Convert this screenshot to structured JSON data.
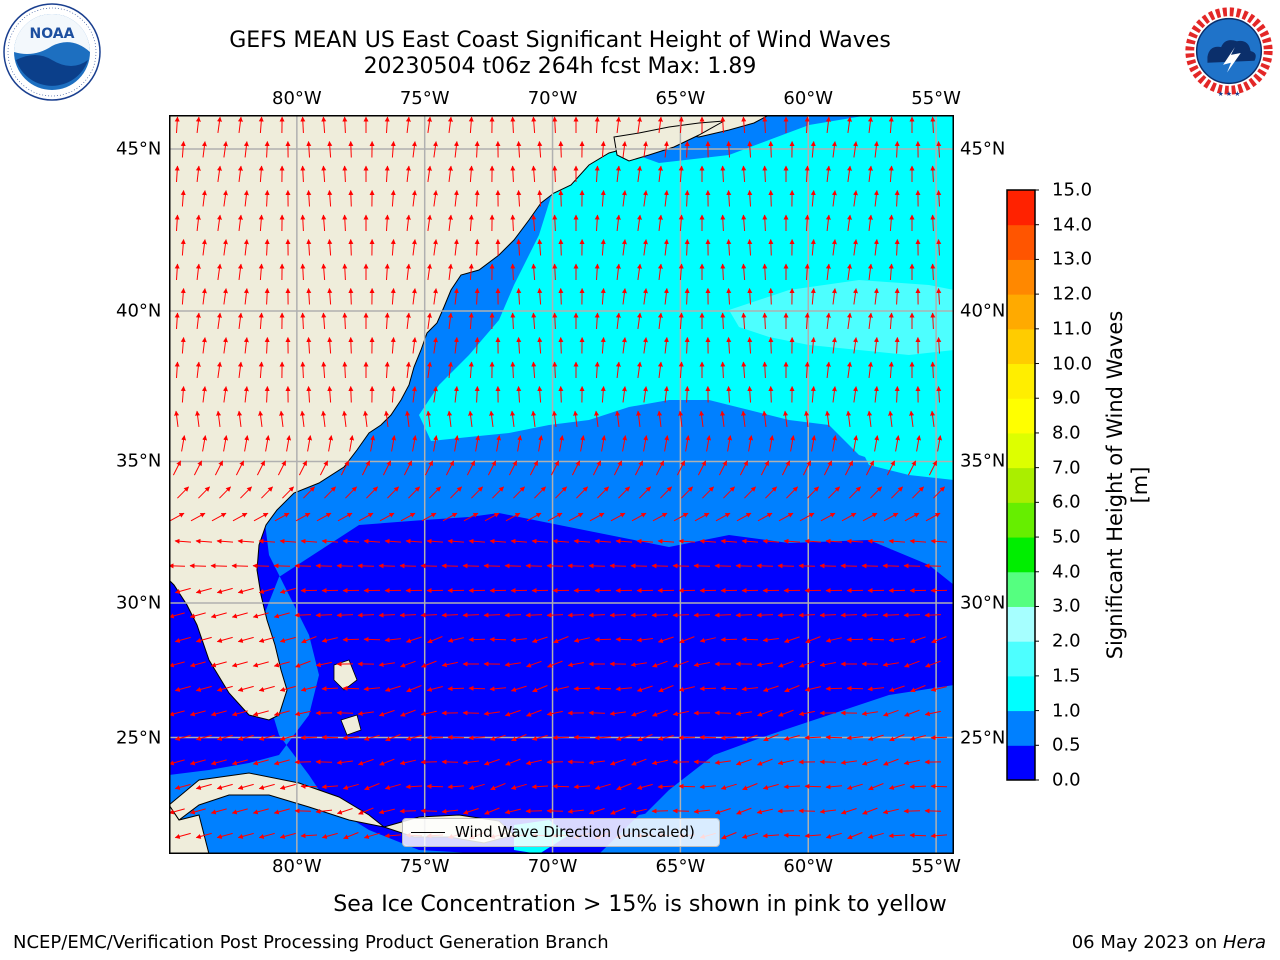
{
  "title": {
    "line1": "GEFS MEAN US East Coast Significant Height of Wind Waves",
    "line2": "20230504 t06z 264h fcst   Max: 1.89"
  },
  "map": {
    "lon_labels": [
      "80°W",
      "75°W",
      "70°W",
      "65°W",
      "60°W",
      "55°W"
    ],
    "lat_labels": [
      "45°N",
      "40°N",
      "35°N",
      "30°N",
      "25°N"
    ],
    "lon_values": [
      -80,
      -75,
      -70,
      -65,
      -60,
      -55
    ],
    "lat_values": [
      45,
      40,
      35,
      30,
      25
    ],
    "extent": {
      "lon_min": -85,
      "lon_max": -54.3,
      "lat_min": 20.5,
      "lat_max": 46
    },
    "land_color": "#efeddb",
    "grid_color": "#b0b0b0",
    "arrow_color": "#ff0000",
    "wave_colors": {
      "0.0-0.5": "#0000ff",
      "0.5-1.0": "#0080ff",
      "1.0-1.5": "#00ffff",
      "1.5-2.0": "#4dffff"
    }
  },
  "legend": {
    "label": "Wind Wave Direction (unscaled)"
  },
  "colorbar": {
    "label": "Significant Height of Wind Waves [m]",
    "ticks": [
      "0.0",
      "0.5",
      "1.0",
      "1.5",
      "2.0",
      "3.0",
      "4.0",
      "5.0",
      "6.0",
      "7.0",
      "8.0",
      "9.0",
      "10.0",
      "11.0",
      "12.0",
      "13.0",
      "14.0",
      "15.0"
    ],
    "colors": [
      "#0000ff",
      "#0080ff",
      "#00ffff",
      "#4dffff",
      "#a6ffff",
      "#55ff80",
      "#00ee00",
      "#66ee00",
      "#aaee00",
      "#ddff00",
      "#ffff00",
      "#ffee00",
      "#ffcc00",
      "#ffaa00",
      "#ff8800",
      "#ff5500",
      "#ff2200",
      "#ff0000"
    ]
  },
  "ice_note": "Sea Ice Concentration > 15% is shown in pink to yellow",
  "footer": {
    "left": "NCEP/EMC/Verification Post Processing Product Generation Branch",
    "date": "06 May 2023 on ",
    "machine": "Hera"
  },
  "logos": {
    "noaa": "NOAA",
    "nws": "NATIONAL WEATHER SERVICE"
  }
}
